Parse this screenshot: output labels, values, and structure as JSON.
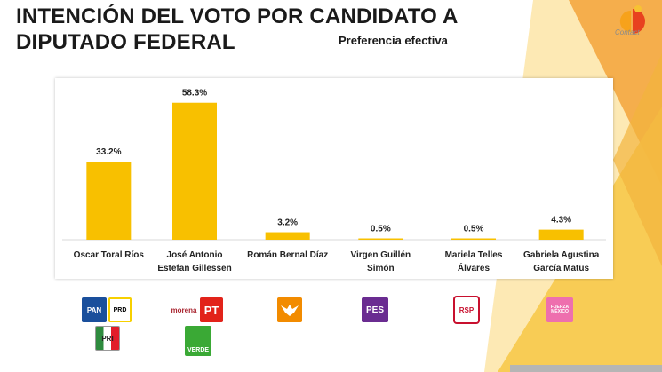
{
  "header": {
    "title_line1": "INTENCIÓN DEL VOTO POR CANDIDATO A",
    "title_line2": "DIPUTADO FEDERAL",
    "subtitle": "Preferencia efectiva"
  },
  "brand": {
    "name": "Contact",
    "icon": "contact-logo-icon"
  },
  "colors": {
    "bar": "#f8c000",
    "deco_yellow": "#f7c94a",
    "deco_orange": "#f3a33a",
    "deco_light": "#fce6a8"
  },
  "chart_data": {
    "type": "bar",
    "title": "",
    "xlabel": "",
    "ylabel": "",
    "ylim": [
      0,
      65
    ],
    "categories": [
      [
        "Oscar Toral Ríos"
      ],
      [
        "José Antonio",
        "Estefan Gillessen"
      ],
      [
        "Román Bernal Díaz"
      ],
      [
        "Virgen Guillén",
        "Simón"
      ],
      [
        "Mariela Telles",
        "Álvares"
      ],
      [
        "Gabriela Agustina",
        "García Matus"
      ]
    ],
    "values": [
      33.2,
      58.3,
      3.2,
      0.5,
      0.5,
      4.3
    ],
    "data_labels": [
      "33.2%",
      "58.3%",
      "3.2%",
      "0.5%",
      "0.5%",
      "4.3%"
    ]
  },
  "parties": [
    {
      "label": "PAN",
      "icon": "pan-logo-icon",
      "color": "#1a4f9c"
    },
    {
      "label": "PRD",
      "icon": "prd-logo-icon",
      "color": "#f7d000"
    },
    {
      "label": "PRI",
      "icon": "pri-logo-icon",
      "color": "#e21d2a"
    },
    {
      "label": "morena",
      "icon": "morena-logo-icon",
      "color": "#a8222d"
    },
    {
      "label": "PT",
      "icon": "pt-logo-icon",
      "color": "#e2231a"
    },
    {
      "label": "VERDE",
      "icon": "verde-logo-icon",
      "color": "#3aa935"
    },
    {
      "label": "",
      "icon": "movimiento-ciudadano-logo-icon",
      "color": "#f28b00"
    },
    {
      "label": "PES",
      "icon": "pes-logo-icon",
      "color": "#6a2c91"
    },
    {
      "label": "RSP",
      "icon": "rsp-logo-icon",
      "color": "#c8102e"
    },
    {
      "label": "FUERZA MÉXICO",
      "icon": "fuerza-mexico-logo-icon",
      "color": "#ee6fae"
    }
  ]
}
